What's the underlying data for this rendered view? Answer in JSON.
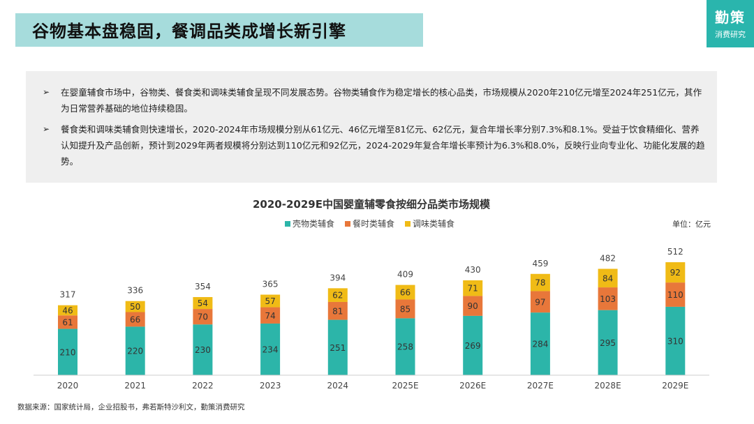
{
  "header": {
    "title": "谷物基本盘稳固，餐调品类成增长新引擎"
  },
  "logo": {
    "main": "勤策",
    "sub": "消费研究"
  },
  "summary": {
    "bullet_glyph": "➢",
    "bullets": [
      "在婴童辅食市场中，谷物类、餐食类和调味类辅食呈现不同发展态势。谷物类辅食作为稳定增长的核心品类，市场规模从2020年210亿元增至2024年251亿元，其作为日常营养基础的地位持续稳固。",
      "餐食类和调味类辅食则快速增长，2020-2024年市场规模分别从61亿元、46亿元增至81亿元、62亿元，复合年增长率分别7.3%和8.1%。受益于饮食精细化、营养认知提升及产品创新，预计到2029年两者规模将分别达到110亿元和92亿元，2024-2029年复合年增长率预计为6.3%和8.0%，反映行业向专业化、功能化发展的趋势。"
    ]
  },
  "chart_data": {
    "type": "bar",
    "stacked": true,
    "title": "2020-2029E中国婴童辅零食按细分品类市场规模",
    "unit_label": "单位：亿元",
    "categories": [
      "2020",
      "2021",
      "2022",
      "2023",
      "2024",
      "2025E",
      "2026E",
      "2027E",
      "2028E",
      "2029E"
    ],
    "series": [
      {
        "name": "壳物类辅食",
        "color": "#2cb5a9",
        "values": [
          210,
          220,
          230,
          234,
          251,
          258,
          269,
          284,
          295,
          310
        ]
      },
      {
        "name": "餐时类辅食",
        "color": "#e8773a",
        "values": [
          61,
          66,
          70,
          74,
          81,
          85,
          90,
          97,
          103,
          110
        ]
      },
      {
        "name": "调味类辅食",
        "color": "#f0bb16",
        "values": [
          46,
          50,
          54,
          57,
          62,
          66,
          71,
          78,
          84,
          92
        ]
      }
    ],
    "totals": [
      317,
      336,
      354,
      365,
      394,
      409,
      430,
      459,
      482,
      512
    ],
    "legend_position": "top-center",
    "ylim": [
      0,
      512
    ],
    "grid": false
  },
  "footnote": "数据来源：国家统计局，企业招股书，弗若斯特沙利文，勤策消费研究"
}
